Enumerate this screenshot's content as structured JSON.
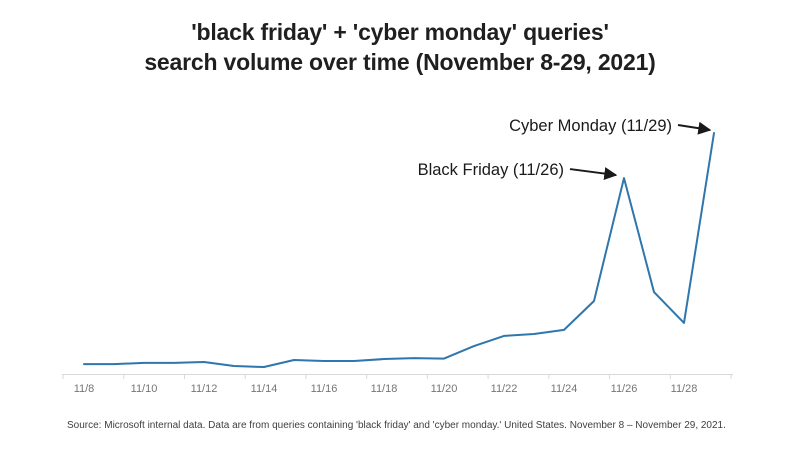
{
  "title": {
    "line1": "'black friday' + 'cyber monday' queries'",
    "line2": "search volume over time (November 8-29, 2021)"
  },
  "source_note": "Source: Microsoft internal data. Data are from queries containing 'black friday' and 'cyber monday.' United States. November 8 – November 29, 2021.",
  "chart_data": {
    "type": "line",
    "title": "'black friday' + 'cyber monday' queries' search volume over time (November 8-29, 2021)",
    "x": [
      "11/8",
      "11/9",
      "11/10",
      "11/11",
      "11/12",
      "11/13",
      "11/14",
      "11/15",
      "11/16",
      "11/17",
      "11/18",
      "11/19",
      "11/20",
      "11/21",
      "11/22",
      "11/23",
      "11/24",
      "11/25",
      "11/26",
      "11/27",
      "11/28",
      "11/29"
    ],
    "values": [
      4.1,
      4.1,
      4.6,
      4.6,
      5.0,
      3.3,
      2.9,
      5.8,
      5.4,
      5.4,
      6.2,
      6.6,
      6.4,
      11.6,
      15.8,
      16.6,
      18.3,
      30.3,
      81.3,
      34.0,
      21.2,
      100
    ],
    "x_tick_labels": [
      "11/8",
      "11/10",
      "11/12",
      "11/14",
      "11/16",
      "11/18",
      "11/20",
      "11/22",
      "11/24",
      "11/26",
      "11/28"
    ],
    "xlabel": "",
    "ylabel": "",
    "ylim": [
      0,
      100
    ],
    "grid": false,
    "legend_position": "none",
    "line_color": "#2E76AC",
    "axis_color": "#D9D9D9",
    "tick_label_color": "#757575",
    "annotation_color": "#1a1a1a",
    "annotations": [
      {
        "label": "Black Friday (11/26)",
        "x": "11/26"
      },
      {
        "label": "Cyber Monday (11/29)",
        "x": "11/29"
      }
    ]
  }
}
